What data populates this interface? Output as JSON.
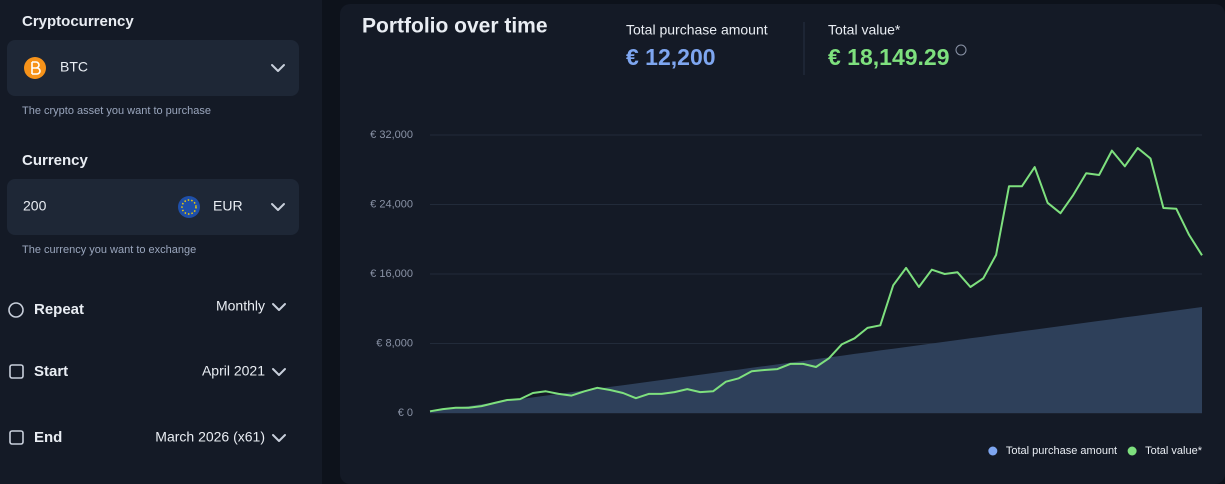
{
  "form": {
    "crypto": {
      "label": "Cryptocurrency",
      "value": "BTC",
      "hint": "The crypto asset you want to purchase"
    },
    "currency": {
      "label": "Currency",
      "amount": "200",
      "value": "EUR",
      "hint": "The currency you want to exchange"
    },
    "repeat": {
      "label": "Repeat",
      "value": "Monthly"
    },
    "start": {
      "label": "Start",
      "value": "April 2021"
    },
    "end": {
      "label": "End",
      "value": "March 2026 (x61)"
    }
  },
  "summary": {
    "purchase_label": "Total purchase amount",
    "purchase_value": "€ 12,200",
    "value_label": "Total value*",
    "value": "€ 18,149.29"
  },
  "chart_data": {
    "type": "line",
    "title": "Portfolio over time",
    "ylim": [
      0,
      32000
    ],
    "yticks": [
      {
        "value": 0,
        "label": "€ 0"
      },
      {
        "value": 8000,
        "label": "€ 8,000"
      },
      {
        "value": 16000,
        "label": "€ 16,000"
      },
      {
        "value": 24000,
        "label": "€ 24,000"
      },
      {
        "value": 32000,
        "label": "€ 32,000"
      }
    ],
    "grid": true,
    "legend": "bottom-right",
    "series": [
      {
        "name": "Total purchase amount",
        "color": "#7ea6f0",
        "fill": "#2e405a",
        "style": "area",
        "values": [
          200,
          400,
          600,
          800,
          1000,
          1200,
          1400,
          1600,
          1800,
          2000,
          2200,
          2400,
          2600,
          2800,
          3000,
          3200,
          3400,
          3600,
          3800,
          4000,
          4200,
          4400,
          4600,
          4800,
          5000,
          5200,
          5400,
          5600,
          5800,
          6000,
          6200,
          6400,
          6600,
          6800,
          7000,
          7200,
          7400,
          7600,
          7800,
          8000,
          8200,
          8400,
          8600,
          8800,
          9000,
          9200,
          9400,
          9600,
          9800,
          10000,
          10200,
          10400,
          10600,
          10800,
          11000,
          11200,
          11400,
          11600,
          11800,
          12000,
          12200
        ]
      },
      {
        "name": "Total value*",
        "color": "#7ee07e",
        "style": "line",
        "values": [
          200,
          450,
          600,
          600,
          800,
          1150,
          1500,
          1600,
          2300,
          2500,
          2200,
          2000,
          2500,
          2900,
          2650,
          2300,
          1700,
          2200,
          2200,
          2400,
          2750,
          2400,
          2500,
          3600,
          4000,
          4800,
          4950,
          5050,
          5650,
          5650,
          5300,
          6300,
          7900,
          8600,
          9800,
          10100,
          14700,
          16700,
          14500,
          16500,
          16000,
          16200,
          14500,
          15500,
          18200,
          26100,
          26100,
          28300,
          24200,
          23000,
          25100,
          27600,
          27400,
          30200,
          28400,
          30500,
          29300,
          23600,
          23500,
          20500,
          18149.29
        ]
      }
    ]
  }
}
